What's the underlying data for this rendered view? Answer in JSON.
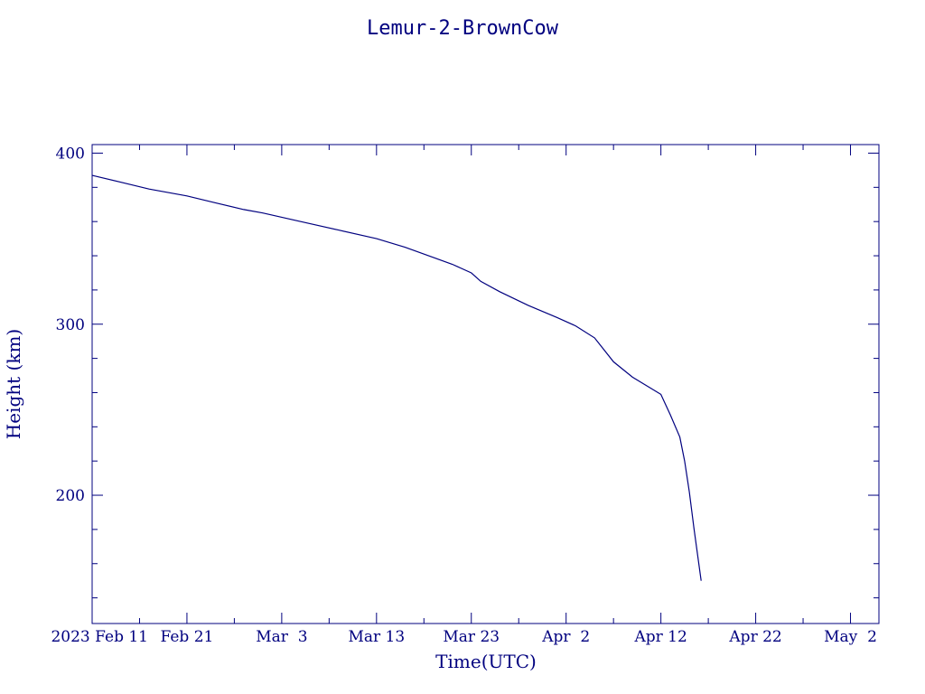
{
  "chart_data": {
    "type": "line",
    "title": "Lemur-2-BrownCow",
    "xlabel": "Time(UTC)",
    "ylabel": "Height (km)",
    "xlim": [
      "2023-02-11",
      "2023-05-05"
    ],
    "ylim": [
      125,
      405
    ],
    "x_tick_labels": [
      "2023 Feb 11",
      "Feb 21",
      "Mar  3",
      "Mar 13",
      "Mar 23",
      "Apr  2",
      "Apr 12",
      "Apr 22",
      "May  2"
    ],
    "x_tick_dates": [
      "2023-02-11",
      "2023-02-21",
      "2023-03-03",
      "2023-03-13",
      "2023-03-23",
      "2023-04-02",
      "2023-04-12",
      "2023-04-22",
      "2023-05-02"
    ],
    "y_tick_labels": [
      "200",
      "300",
      "400"
    ],
    "y_ticks": [
      200,
      300,
      400
    ],
    "y_minor_step": 20,
    "x_minor_step_days": 5,
    "grid": false,
    "colors": {
      "line": "#00007f",
      "axes": "#00007f",
      "text": "#00007f",
      "background": "#ffffff"
    },
    "series": [
      {
        "x": [
          "2023-02-11",
          "2023-02-14",
          "2023-02-17",
          "2023-02-21",
          "2023-02-24",
          "2023-02-27",
          "2023-03-01",
          "2023-03-05",
          "2023-03-09",
          "2023-03-13",
          "2023-03-16",
          "2023-03-19",
          "2023-03-21",
          "2023-03-23",
          "2023-03-24",
          "2023-03-26",
          "2023-03-29",
          "2023-04-01",
          "2023-04-03",
          "2023-04-05",
          "2023-04-07",
          "2023-04-09",
          "2023-04-12",
          "2023-04-13",
          "2023-04-14",
          "2023-04-14T12:00",
          "2023-04-15",
          "2023-04-15T12:00",
          "2023-04-16",
          "2023-04-16T06:00"
        ],
        "y": [
          387,
          383,
          379,
          375,
          371,
          367,
          365,
          360,
          355,
          350,
          345,
          339,
          335,
          330,
          325,
          319,
          311,
          304,
          299,
          292,
          278,
          269,
          259,
          247,
          234,
          220,
          202,
          180,
          160,
          150
        ]
      }
    ]
  }
}
